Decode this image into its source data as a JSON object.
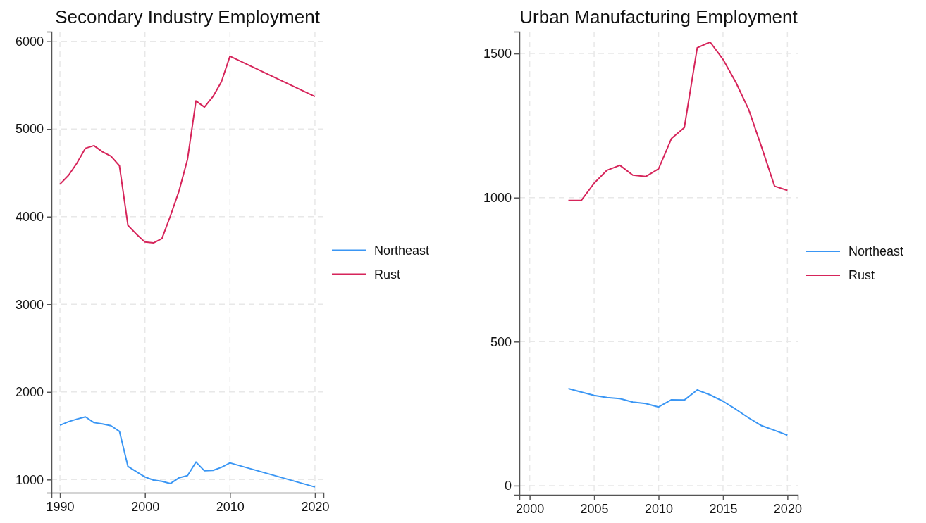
{
  "chart_data": [
    {
      "type": "line",
      "title": "Secondary Industry Employment",
      "xlim": [
        1989,
        2021
      ],
      "xticks": [
        1990,
        2000,
        2010,
        2020
      ],
      "ylim": [
        850,
        6110
      ],
      "yticks": [
        1000,
        2000,
        3000,
        4000,
        5000,
        6000
      ],
      "grid": true,
      "legend": "right",
      "line_style": "solid",
      "marker": "none",
      "series": [
        {
          "name": "Northeast",
          "color": "#3a96f4",
          "x": [
            1990,
            1991,
            1992,
            1993,
            1994,
            1995,
            1996,
            1997,
            1998,
            1999,
            2000,
            2001,
            2002,
            2003,
            2004,
            2005,
            2006,
            2007,
            2008,
            2009,
            2010,
            2020
          ],
          "values": [
            1620,
            1660,
            1690,
            1715,
            1650,
            1635,
            1615,
            1550,
            1150,
            1090,
            1030,
            995,
            980,
            955,
            1020,
            1045,
            1200,
            1100,
            1105,
            1140,
            1190,
            915
          ]
        },
        {
          "name": "Rust",
          "color": "#d6245a",
          "x": [
            1990,
            1991,
            1992,
            1993,
            1994,
            1995,
            1996,
            1997,
            1998,
            1999,
            2000,
            2001,
            2002,
            2003,
            2004,
            2005,
            2006,
            2007,
            2008,
            2009,
            2010,
            2020
          ],
          "values": [
            4370,
            4470,
            4610,
            4780,
            4810,
            4740,
            4690,
            4580,
            3900,
            3800,
            3710,
            3700,
            3750,
            4010,
            4290,
            4650,
            5320,
            5250,
            5370,
            5540,
            5830,
            5370
          ]
        }
      ]
    },
    {
      "type": "line",
      "title": "Urban Manufacturing Employment",
      "xlim": [
        1999.2,
        2020.8
      ],
      "xticks": [
        2000,
        2005,
        2010,
        2015,
        2020
      ],
      "ylim": [
        -32,
        1576
      ],
      "yticks": [
        0,
        500,
        1000,
        1500
      ],
      "grid": true,
      "legend": "right",
      "line_style": "solid",
      "marker": "none",
      "series": [
        {
          "name": "Northeast",
          "color": "#3a96f4",
          "x": [
            2003,
            2004,
            2005,
            2006,
            2007,
            2008,
            2009,
            2010,
            2011,
            2012,
            2013,
            2014,
            2015,
            2016,
            2017,
            2018,
            2019,
            2020
          ],
          "values": [
            337,
            325,
            313,
            306,
            302,
            290,
            285,
            273,
            298,
            297,
            332,
            315,
            293,
            265,
            235,
            208,
            192,
            175
          ]
        },
        {
          "name": "Rust",
          "color": "#d6245a",
          "x": [
            2003,
            2004,
            2005,
            2006,
            2007,
            2008,
            2009,
            2010,
            2011,
            2012,
            2013,
            2014,
            2015,
            2016,
            2017,
            2018,
            2019,
            2020
          ],
          "values": [
            990,
            990,
            1050,
            1095,
            1112,
            1078,
            1073,
            1100,
            1205,
            1243,
            1520,
            1540,
            1480,
            1400,
            1305,
            1175,
            1040,
            1025
          ]
        }
      ]
    }
  ]
}
